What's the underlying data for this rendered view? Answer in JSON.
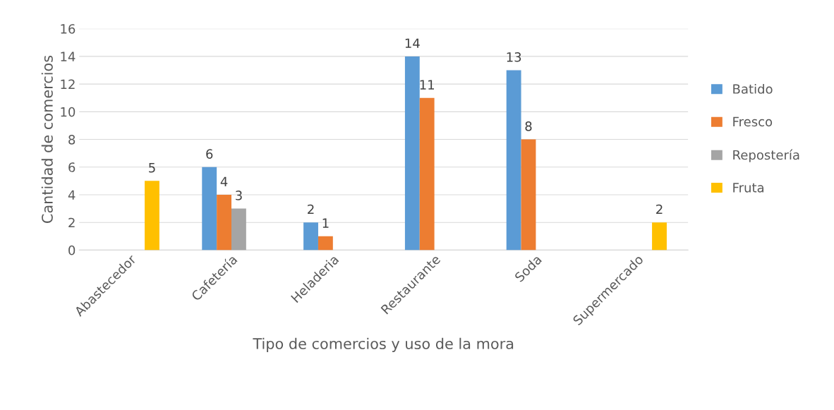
{
  "chart_data": {
    "type": "bar",
    "xlabel": "Tipo de comercios y uso de la mora",
    "ylabel": "Cantidad de comercios",
    "categories": [
      "Abastecedor",
      "Cafetería",
      "Heladeria",
      "Restaurante",
      "Soda",
      "Supermercado"
    ],
    "series": [
      {
        "name": "Batido",
        "color": "#5b9bd5",
        "values": [
          null,
          6,
          2,
          14,
          13,
          null
        ]
      },
      {
        "name": "Fresco",
        "color": "#ed7d31",
        "values": [
          null,
          4,
          1,
          11,
          8,
          null
        ]
      },
      {
        "name": "Repostería",
        "color": "#a5a5a5",
        "values": [
          null,
          3,
          null,
          null,
          null,
          null
        ]
      },
      {
        "name": "Fruta",
        "color": "#ffc000",
        "values": [
          5,
          null,
          null,
          null,
          null,
          2
        ]
      }
    ],
    "ylim": [
      0,
      16
    ],
    "yticks": [
      0,
      2,
      4,
      6,
      8,
      10,
      12,
      14,
      16
    ],
    "grid": "y",
    "legend": "right",
    "data_labels": true
  }
}
